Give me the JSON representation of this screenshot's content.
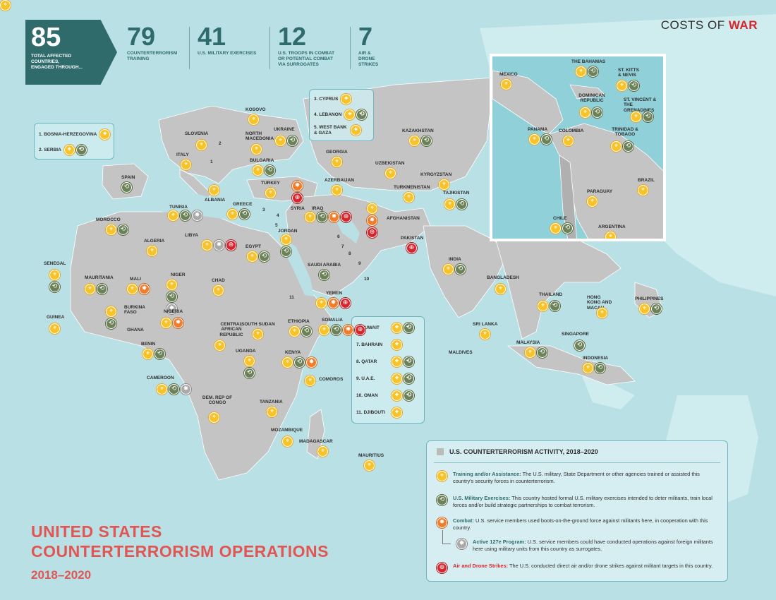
{
  "brand": {
    "prefix": "COSTS OF",
    "accent": "WAR"
  },
  "stats": {
    "total": {
      "value": "85",
      "label_lines": [
        "TOTAL AFFECTED",
        "COUNTRIES,",
        "ENGAGED THROUGH..."
      ]
    },
    "items": [
      {
        "value": "79",
        "label_lines": [
          "COUNTERTERRORISM",
          "TRAINING"
        ]
      },
      {
        "value": "41",
        "label_lines": [
          "U.S. MILITARY EXERCISES"
        ]
      },
      {
        "value": "12",
        "label_lines": [
          "U.S. TROOPS IN COMBAT",
          "OR POTENTIAL COMBAT",
          "VIA SURROGATES"
        ]
      },
      {
        "value": "7",
        "label_lines": [
          "AIR & DRONE STRIKES"
        ]
      }
    ]
  },
  "title": {
    "line1": "UNITED STATES",
    "line2": "COUNTERTERRORISM OPERATIONS",
    "years": "2018–2020"
  },
  "colors": {
    "training": "#f6c32a",
    "exercises": "#6b8158",
    "combat": "#f07d2c",
    "program_127e": "#a9a9a9",
    "strikes": "#d9242b",
    "title": "#e15553",
    "header": "#2f6b6b"
  },
  "icons": {
    "training": "crosshair-icon",
    "exercises": "arrows-cycle-icon",
    "combat": "burst-icon",
    "program_127e": "gray-burst-icon",
    "strikes": "crosshair-strike-icon"
  },
  "legend": {
    "title": "U.S. COUNTERTERRORISM ACTIVITY, 2018–2020",
    "items": [
      {
        "type": "training",
        "term": "Training and/or Assistance:",
        "text": "The U.S. military, State Department or other agencies trained or assisted this country's security forces in counterterrorism."
      },
      {
        "type": "exercises",
        "term": "U.S. Military Exercises:",
        "text": "This country hosted formal U.S. military exercises intended to deter militants, train local forces and/or build strategic partnerships to combat terrorism."
      },
      {
        "type": "combat",
        "term": "Combat:",
        "text": "U.S. service members used boots-on-the-ground force against militants here, in cooperation with this country."
      },
      {
        "type": "program_127e",
        "term": "Active 127e Program:",
        "text": "U.S. service members could have conducted operations against foreign militants here using military units from this country as surrogates."
      },
      {
        "type": "strikes",
        "term": "Air and Drone Strikes:",
        "text": "The U.S. conducted direct air and/or drone strikes against militant targets in this country."
      }
    ]
  },
  "box_balkans": [
    {
      "label": "1. BOSNIA-HERZEGOVINA",
      "icons": [
        "training"
      ]
    },
    {
      "label": "2. SERBIA",
      "icons": [
        "training",
        "exercises"
      ]
    }
  ],
  "box_mideast": [
    {
      "label": "3. CYPRUS",
      "icons": [
        "training"
      ]
    },
    {
      "label": "4. LEBANON",
      "icons": [
        "training",
        "exercises"
      ]
    },
    {
      "label": "5. WEST BANK & GAZA",
      "icons": [
        "training"
      ]
    }
  ],
  "box_gulf": [
    {
      "label": "6. KUWAIT",
      "icons": [
        "training",
        "exercises"
      ]
    },
    {
      "label": "7. BAHRAIN",
      "icons": [
        "training"
      ]
    },
    {
      "label": "8. QATAR",
      "icons": [
        "training",
        "exercises"
      ]
    },
    {
      "label": "9. U.A.E.",
      "icons": [
        "training",
        "exercises"
      ]
    },
    {
      "label": "10. OMAN",
      "icons": [
        "training",
        "exercises"
      ]
    },
    {
      "label": "11. DJIBOUTI",
      "icons": [
        "training"
      ]
    }
  ],
  "number_markers": [
    "1",
    "2",
    "3",
    "4",
    "5",
    "6",
    "7",
    "8",
    "9",
    "10",
    "11"
  ],
  "countries": [
    {
      "name": "SLOVENIA",
      "icons": [
        "training"
      ]
    },
    {
      "name": "KOSOVO",
      "icons": [
        "training"
      ]
    },
    {
      "name": "NORTH MACEDONIA",
      "icons": [
        "training"
      ]
    },
    {
      "name": "UKRAINE",
      "icons": [
        "training",
        "exercises"
      ]
    },
    {
      "name": "ITALY",
      "icons": [
        "training"
      ]
    },
    {
      "name": "BULGARIA",
      "icons": [
        "training",
        "exercises"
      ]
    },
    {
      "name": "SPAIN",
      "icons": [
        "exercises"
      ]
    },
    {
      "name": "ALBANIA",
      "icons": [
        "training"
      ]
    },
    {
      "name": "GREECE",
      "icons": [
        "training",
        "exercises"
      ]
    },
    {
      "name": "TURKEY",
      "icons": [
        "training"
      ]
    },
    {
      "name": "GEORGIA",
      "icons": [
        "training"
      ]
    },
    {
      "name": "AZERBAIJAN",
      "icons": [
        "training"
      ]
    },
    {
      "name": "KAZAKHSTAN",
      "icons": [
        "training",
        "exercises"
      ]
    },
    {
      "name": "UZBEKISTAN",
      "icons": [
        "training"
      ]
    },
    {
      "name": "TURKMENISTAN",
      "icons": [
        "training"
      ]
    },
    {
      "name": "KYRGYZSTAN",
      "icons": [
        "training"
      ]
    },
    {
      "name": "TAJIKISTAN",
      "icons": [
        "training",
        "exercises"
      ]
    },
    {
      "name": "TUNISIA",
      "icons": [
        "training",
        "exercises",
        "program_127e"
      ]
    },
    {
      "name": "MOROCCO",
      "icons": [
        "training",
        "exercises"
      ]
    },
    {
      "name": "LIBYA",
      "icons": [
        "training",
        "program_127e",
        "strikes"
      ]
    },
    {
      "name": "SYRIA",
      "icons": [
        "combat",
        "strikes"
      ]
    },
    {
      "name": "IRAQ",
      "icons": [
        "training",
        "exercises",
        "combat",
        "strikes"
      ]
    },
    {
      "name": "JORDAN",
      "icons": [
        "training",
        "exercises"
      ]
    },
    {
      "name": "AFGHANISTAN",
      "icons": [
        "training",
        "combat",
        "strikes"
      ]
    },
    {
      "name": "ALGERIA",
      "icons": [
        "training"
      ]
    },
    {
      "name": "EGYPT",
      "icons": [
        "training",
        "exercises"
      ]
    },
    {
      "name": "PAKISTAN",
      "icons": [
        "strikes"
      ]
    },
    {
      "name": "SAUDI ARABIA",
      "icons": [
        "exercises"
      ]
    },
    {
      "name": "INDIA",
      "icons": [
        "training",
        "exercises"
      ]
    },
    {
      "name": "SENEGAL",
      "icons": [
        "training",
        "exercises"
      ]
    },
    {
      "name": "MAURITANIA",
      "icons": [
        "training",
        "exercises"
      ]
    },
    {
      "name": "MALI",
      "icons": [
        "training",
        "combat"
      ]
    },
    {
      "name": "NIGER",
      "icons": [
        "training",
        "exercises",
        "program_127e"
      ]
    },
    {
      "name": "CHAD",
      "icons": [
        "training"
      ]
    },
    {
      "name": "BANGLADESH",
      "icons": [
        "training"
      ]
    },
    {
      "name": "YEMEN",
      "icons": [
        "training",
        "combat",
        "strikes"
      ]
    },
    {
      "name": "GUINEA",
      "icons": [
        "training"
      ]
    },
    {
      "name": "BURKINA FASO",
      "icons": [
        "training",
        "exercises"
      ]
    },
    {
      "name": "GHANA",
      "icons": []
    },
    {
      "name": "NIGERIA",
      "icons": [
        "training",
        "combat"
      ]
    },
    {
      "name": "CENTRAL AFRICAN REPUBLIC",
      "icons": [
        "training"
      ]
    },
    {
      "name": "SOUTH SUDAN",
      "icons": [
        "training"
      ]
    },
    {
      "name": "ETHIOPIA",
      "icons": [
        "training",
        "exercises"
      ]
    },
    {
      "name": "SOMALIA",
      "icons": [
        "training",
        "exercises",
        "combat",
        "strikes"
      ]
    },
    {
      "name": "THAILAND",
      "icons": [
        "training",
        "exercises"
      ]
    },
    {
      "name": "HONG KONG AND MACAU",
      "icons": [
        "training"
      ]
    },
    {
      "name": "PHILIPPINES",
      "icons": [
        "training",
        "exercises"
      ]
    },
    {
      "name": "SRI LANKA",
      "icons": [
        "training"
      ]
    },
    {
      "name": "BENIN",
      "icons": [
        "training",
        "exercises"
      ]
    },
    {
      "name": "UGANDA",
      "icons": [
        "training",
        "exercises"
      ]
    },
    {
      "name": "KENYA",
      "icons": [
        "training",
        "exercises",
        "combat"
      ]
    },
    {
      "name": "MALDIVES",
      "icons": [
        "training"
      ]
    },
    {
      "name": "SINGAPORE",
      "icons": [
        "exercises"
      ]
    },
    {
      "name": "MALAYSIA",
      "icons": [
        "training",
        "exercises"
      ]
    },
    {
      "name": "INDONESIA",
      "icons": [
        "training",
        "exercises"
      ]
    },
    {
      "name": "CAMEROON",
      "icons": [
        "training",
        "exercises",
        "program_127e"
      ]
    },
    {
      "name": "DEM. REP OF CONGO",
      "icons": [
        "training"
      ]
    },
    {
      "name": "TANZANIA",
      "icons": [
        "training"
      ]
    },
    {
      "name": "COMOROS",
      "icons": [
        "training"
      ]
    },
    {
      "name": "MOZAMBIQUE",
      "icons": [
        "training"
      ]
    },
    {
      "name": "MADAGASCAR",
      "icons": [
        "training"
      ]
    },
    {
      "name": "MAURITIUS",
      "icons": [
        "training"
      ]
    }
  ],
  "inset_countries": [
    {
      "name": "THE BAHAMAS",
      "icons": [
        "training",
        "exercises"
      ]
    },
    {
      "name": "ST. KITTS & NEVIS",
      "icons": [
        "training",
        "exercises"
      ]
    },
    {
      "name": "MEXICO",
      "icons": [
        "training"
      ]
    },
    {
      "name": "DOMINICAN REPUBLIC",
      "icons": [
        "training",
        "exercises"
      ]
    },
    {
      "name": "ST. VINCENT & THE GRENADINES",
      "icons": [
        "training",
        "exercises"
      ]
    },
    {
      "name": "PANAMA",
      "icons": [
        "training",
        "exercises"
      ]
    },
    {
      "name": "COLOMBIA",
      "icons": [
        "training"
      ]
    },
    {
      "name": "TRINIDAD & TOBAGO",
      "icons": [
        "training",
        "exercises"
      ]
    },
    {
      "name": "BRAZIL",
      "icons": [
        "training"
      ]
    },
    {
      "name": "PARAGUAY",
      "icons": [
        "training"
      ]
    },
    {
      "name": "CHILE",
      "icons": [
        "training",
        "exercises"
      ]
    },
    {
      "name": "ARGENTINA",
      "icons": [
        "training"
      ]
    }
  ]
}
